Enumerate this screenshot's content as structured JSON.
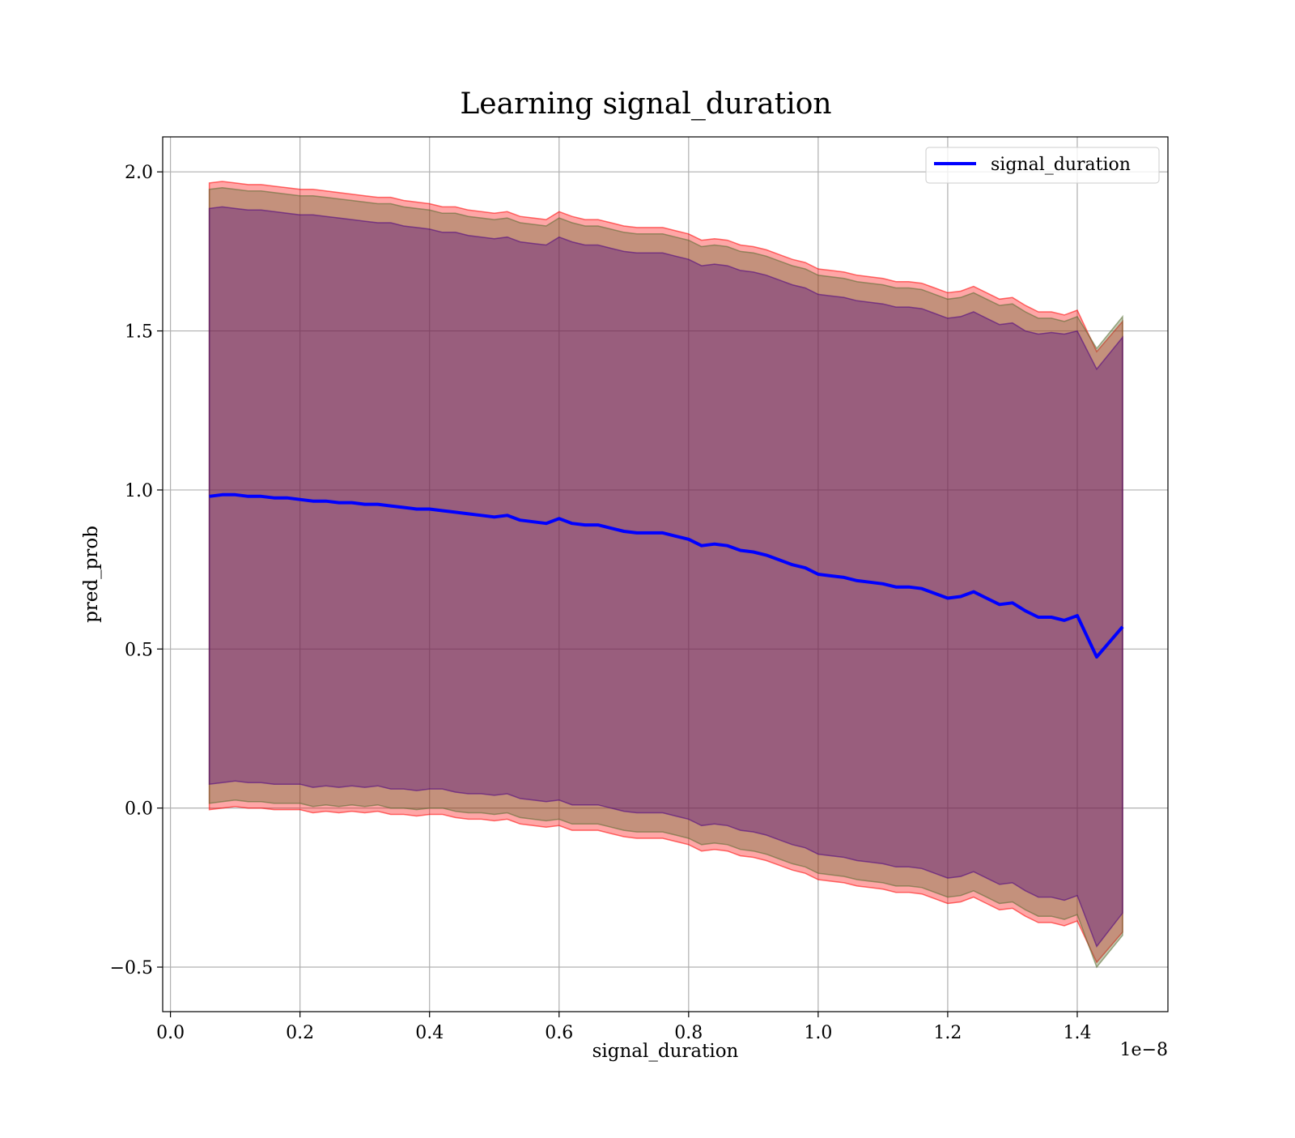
{
  "chart_data": {
    "type": "line",
    "title": "Learning signal_duration",
    "xlabel": "signal_duration",
    "ylabel": "pred_prob",
    "x_offset_text": "1e−8",
    "x_scale_exponent": -8,
    "xlim": [
      -0.012,
      1.54
    ],
    "ylim": [
      -0.64,
      2.11
    ],
    "xticks": [
      0.0,
      0.2,
      0.4,
      0.6,
      0.8,
      1.0,
      1.2,
      1.4
    ],
    "xtick_labels": [
      "0.0",
      "0.2",
      "0.4",
      "0.6",
      "0.8",
      "1.0",
      "1.2",
      "1.4"
    ],
    "yticks": [
      -0.5,
      0.0,
      0.5,
      1.0,
      1.5,
      2.0
    ],
    "ytick_labels": [
      "−0.5",
      "0.0",
      "0.5",
      "1.0",
      "1.5",
      "2.0"
    ],
    "grid": true,
    "legend_position": "top-right",
    "series": [
      {
        "name": "signal_duration",
        "color": "#0000ff",
        "x": [
          0.06,
          0.08,
          0.1,
          0.12,
          0.14,
          0.16,
          0.18,
          0.2,
          0.22,
          0.24,
          0.26,
          0.28,
          0.3,
          0.32,
          0.34,
          0.36,
          0.38,
          0.4,
          0.42,
          0.44,
          0.46,
          0.48,
          0.5,
          0.52,
          0.54,
          0.56,
          0.58,
          0.6,
          0.62,
          0.64,
          0.66,
          0.68,
          0.7,
          0.72,
          0.74,
          0.76,
          0.78,
          0.8,
          0.82,
          0.84,
          0.86,
          0.88,
          0.9,
          0.92,
          0.94,
          0.96,
          0.98,
          1.0,
          1.02,
          1.04,
          1.06,
          1.08,
          1.1,
          1.12,
          1.14,
          1.16,
          1.18,
          1.2,
          1.22,
          1.24,
          1.26,
          1.28,
          1.3,
          1.32,
          1.34,
          1.36,
          1.38,
          1.4,
          1.43,
          1.47
        ],
        "y": [
          0.98,
          0.985,
          0.985,
          0.98,
          0.98,
          0.975,
          0.975,
          0.97,
          0.965,
          0.965,
          0.96,
          0.96,
          0.955,
          0.955,
          0.95,
          0.945,
          0.94,
          0.94,
          0.935,
          0.93,
          0.925,
          0.92,
          0.915,
          0.92,
          0.905,
          0.9,
          0.895,
          0.91,
          0.895,
          0.89,
          0.89,
          0.88,
          0.87,
          0.865,
          0.865,
          0.865,
          0.855,
          0.845,
          0.825,
          0.83,
          0.825,
          0.81,
          0.805,
          0.795,
          0.78,
          0.765,
          0.755,
          0.735,
          0.73,
          0.725,
          0.715,
          0.71,
          0.705,
          0.695,
          0.695,
          0.69,
          0.675,
          0.66,
          0.665,
          0.68,
          0.66,
          0.64,
          0.645,
          0.62,
          0.6,
          0.6,
          0.59,
          0.605,
          0.475,
          0.57
        ]
      }
    ],
    "bands": [
      {
        "color": "#ff0000",
        "opacity": 0.35,
        "x": [
          0.06,
          0.08,
          0.1,
          0.12,
          0.14,
          0.16,
          0.18,
          0.2,
          0.22,
          0.24,
          0.26,
          0.28,
          0.3,
          0.32,
          0.34,
          0.36,
          0.38,
          0.4,
          0.42,
          0.44,
          0.46,
          0.48,
          0.5,
          0.52,
          0.54,
          0.56,
          0.58,
          0.6,
          0.62,
          0.64,
          0.66,
          0.68,
          0.7,
          0.72,
          0.74,
          0.76,
          0.78,
          0.8,
          0.82,
          0.84,
          0.86,
          0.88,
          0.9,
          0.92,
          0.94,
          0.96,
          0.98,
          1.0,
          1.02,
          1.04,
          1.06,
          1.08,
          1.1,
          1.12,
          1.14,
          1.16,
          1.18,
          1.2,
          1.22,
          1.24,
          1.26,
          1.28,
          1.3,
          1.32,
          1.34,
          1.36,
          1.38,
          1.4,
          1.43,
          1.47
        ],
        "upper": [
          1.965,
          1.97,
          1.965,
          1.96,
          1.96,
          1.955,
          1.95,
          1.945,
          1.945,
          1.94,
          1.935,
          1.93,
          1.925,
          1.92,
          1.92,
          1.91,
          1.905,
          1.9,
          1.89,
          1.89,
          1.88,
          1.875,
          1.87,
          1.875,
          1.86,
          1.855,
          1.85,
          1.875,
          1.86,
          1.85,
          1.85,
          1.84,
          1.83,
          1.825,
          1.825,
          1.825,
          1.815,
          1.805,
          1.785,
          1.79,
          1.785,
          1.77,
          1.765,
          1.755,
          1.74,
          1.725,
          1.715,
          1.695,
          1.69,
          1.685,
          1.675,
          1.67,
          1.665,
          1.655,
          1.655,
          1.65,
          1.635,
          1.62,
          1.625,
          1.64,
          1.62,
          1.6,
          1.605,
          1.58,
          1.56,
          1.56,
          1.55,
          1.565,
          1.435,
          1.53
        ],
        "lower": [
          -0.005,
          0.0,
          0.005,
          0.0,
          0.0,
          -0.005,
          -0.005,
          -0.005,
          -0.015,
          -0.01,
          -0.015,
          -0.01,
          -0.015,
          -0.01,
          -0.02,
          -0.02,
          -0.025,
          -0.02,
          -0.02,
          -0.03,
          -0.035,
          -0.035,
          -0.04,
          -0.035,
          -0.05,
          -0.055,
          -0.06,
          -0.055,
          -0.07,
          -0.07,
          -0.07,
          -0.08,
          -0.09,
          -0.095,
          -0.095,
          -0.095,
          -0.105,
          -0.115,
          -0.135,
          -0.13,
          -0.135,
          -0.15,
          -0.155,
          -0.165,
          -0.18,
          -0.195,
          -0.205,
          -0.225,
          -0.23,
          -0.235,
          -0.245,
          -0.25,
          -0.255,
          -0.265,
          -0.265,
          -0.27,
          -0.285,
          -0.3,
          -0.295,
          -0.28,
          -0.3,
          -0.32,
          -0.315,
          -0.34,
          -0.36,
          -0.36,
          -0.37,
          -0.355,
          -0.485,
          -0.39
        ]
      },
      {
        "color": "#556b2f",
        "opacity": 0.35,
        "x": [
          0.06,
          0.08,
          0.1,
          0.12,
          0.14,
          0.16,
          0.18,
          0.2,
          0.22,
          0.24,
          0.26,
          0.28,
          0.3,
          0.32,
          0.34,
          0.36,
          0.38,
          0.4,
          0.42,
          0.44,
          0.46,
          0.48,
          0.5,
          0.52,
          0.54,
          0.56,
          0.58,
          0.6,
          0.62,
          0.64,
          0.66,
          0.68,
          0.7,
          0.72,
          0.74,
          0.76,
          0.78,
          0.8,
          0.82,
          0.84,
          0.86,
          0.88,
          0.9,
          0.92,
          0.94,
          0.96,
          0.98,
          1.0,
          1.02,
          1.04,
          1.06,
          1.08,
          1.1,
          1.12,
          1.14,
          1.16,
          1.18,
          1.2,
          1.22,
          1.24,
          1.26,
          1.28,
          1.3,
          1.32,
          1.34,
          1.36,
          1.38,
          1.4,
          1.43,
          1.47
        ],
        "upper": [
          1.945,
          1.95,
          1.945,
          1.94,
          1.94,
          1.935,
          1.93,
          1.925,
          1.925,
          1.92,
          1.915,
          1.91,
          1.905,
          1.9,
          1.9,
          1.89,
          1.885,
          1.88,
          1.87,
          1.87,
          1.86,
          1.855,
          1.85,
          1.855,
          1.84,
          1.835,
          1.83,
          1.855,
          1.84,
          1.83,
          1.83,
          1.82,
          1.81,
          1.805,
          1.805,
          1.805,
          1.795,
          1.785,
          1.765,
          1.77,
          1.765,
          1.75,
          1.745,
          1.735,
          1.72,
          1.705,
          1.695,
          1.675,
          1.67,
          1.665,
          1.655,
          1.65,
          1.645,
          1.635,
          1.635,
          1.63,
          1.615,
          1.6,
          1.605,
          1.62,
          1.6,
          1.58,
          1.585,
          1.56,
          1.54,
          1.54,
          1.53,
          1.545,
          1.445,
          1.545
        ],
        "lower": [
          0.015,
          0.02,
          0.025,
          0.02,
          0.02,
          0.015,
          0.015,
          0.015,
          0.005,
          0.01,
          0.005,
          0.01,
          0.005,
          0.01,
          0.0,
          0.0,
          -0.005,
          0.0,
          0.0,
          -0.01,
          -0.015,
          -0.015,
          -0.02,
          -0.015,
          -0.03,
          -0.035,
          -0.04,
          -0.035,
          -0.05,
          -0.05,
          -0.05,
          -0.06,
          -0.07,
          -0.075,
          -0.075,
          -0.075,
          -0.085,
          -0.095,
          -0.115,
          -0.11,
          -0.115,
          -0.13,
          -0.135,
          -0.145,
          -0.16,
          -0.175,
          -0.185,
          -0.205,
          -0.21,
          -0.215,
          -0.225,
          -0.23,
          -0.235,
          -0.245,
          -0.245,
          -0.25,
          -0.265,
          -0.28,
          -0.275,
          -0.26,
          -0.28,
          -0.3,
          -0.295,
          -0.32,
          -0.34,
          -0.34,
          -0.35,
          -0.335,
          -0.5,
          -0.4
        ]
      },
      {
        "color": "#4b0082",
        "opacity": 0.35,
        "x": [
          0.06,
          0.08,
          0.1,
          0.12,
          0.14,
          0.16,
          0.18,
          0.2,
          0.22,
          0.24,
          0.26,
          0.28,
          0.3,
          0.32,
          0.34,
          0.36,
          0.38,
          0.4,
          0.42,
          0.44,
          0.46,
          0.48,
          0.5,
          0.52,
          0.54,
          0.56,
          0.58,
          0.6,
          0.62,
          0.64,
          0.66,
          0.68,
          0.7,
          0.72,
          0.74,
          0.76,
          0.78,
          0.8,
          0.82,
          0.84,
          0.86,
          0.88,
          0.9,
          0.92,
          0.94,
          0.96,
          0.98,
          1.0,
          1.02,
          1.04,
          1.06,
          1.08,
          1.1,
          1.12,
          1.14,
          1.16,
          1.18,
          1.2,
          1.22,
          1.24,
          1.26,
          1.28,
          1.3,
          1.32,
          1.34,
          1.36,
          1.38,
          1.4,
          1.43,
          1.47
        ],
        "upper": [
          1.885,
          1.89,
          1.885,
          1.88,
          1.88,
          1.875,
          1.87,
          1.865,
          1.865,
          1.86,
          1.855,
          1.85,
          1.845,
          1.84,
          1.84,
          1.83,
          1.825,
          1.82,
          1.81,
          1.81,
          1.8,
          1.795,
          1.79,
          1.795,
          1.78,
          1.775,
          1.77,
          1.795,
          1.78,
          1.77,
          1.77,
          1.76,
          1.75,
          1.745,
          1.745,
          1.745,
          1.735,
          1.725,
          1.705,
          1.71,
          1.705,
          1.69,
          1.685,
          1.675,
          1.66,
          1.645,
          1.635,
          1.615,
          1.61,
          1.605,
          1.595,
          1.59,
          1.585,
          1.575,
          1.575,
          1.57,
          1.555,
          1.54,
          1.545,
          1.56,
          1.54,
          1.52,
          1.525,
          1.5,
          1.49,
          1.495,
          1.49,
          1.5,
          1.38,
          1.48
        ],
        "lower": [
          0.075,
          0.08,
          0.085,
          0.08,
          0.08,
          0.075,
          0.075,
          0.075,
          0.065,
          0.07,
          0.065,
          0.07,
          0.065,
          0.07,
          0.06,
          0.06,
          0.055,
          0.06,
          0.06,
          0.05,
          0.045,
          0.045,
          0.04,
          0.045,
          0.03,
          0.025,
          0.02,
          0.025,
          0.01,
          0.01,
          0.01,
          0.0,
          -0.01,
          -0.015,
          -0.015,
          -0.015,
          -0.025,
          -0.035,
          -0.055,
          -0.05,
          -0.055,
          -0.07,
          -0.075,
          -0.085,
          -0.1,
          -0.115,
          -0.125,
          -0.145,
          -0.15,
          -0.155,
          -0.165,
          -0.17,
          -0.175,
          -0.185,
          -0.185,
          -0.19,
          -0.205,
          -0.22,
          -0.215,
          -0.2,
          -0.22,
          -0.24,
          -0.235,
          -0.26,
          -0.28,
          -0.28,
          -0.29,
          -0.275,
          -0.435,
          -0.33
        ]
      }
    ]
  }
}
